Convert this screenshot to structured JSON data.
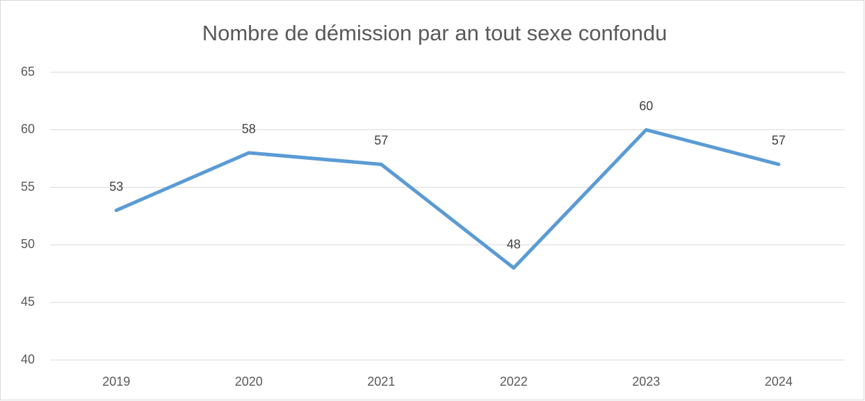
{
  "chart_data": {
    "type": "line",
    "title": "Nombre de démission par an tout sexe confondu",
    "categories": [
      "2019",
      "2020",
      "2021",
      "2022",
      "2023",
      "2024"
    ],
    "values": [
      53,
      58,
      57,
      48,
      60,
      57
    ],
    "color": "#5b9bd5",
    "ylim": [
      40,
      65
    ],
    "yticks": [
      40,
      45,
      50,
      55,
      60,
      65
    ],
    "grid": true
  }
}
